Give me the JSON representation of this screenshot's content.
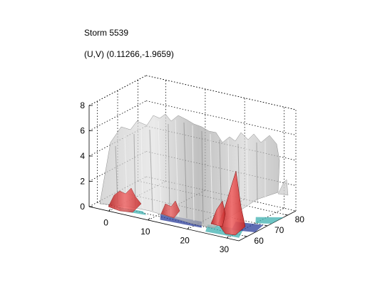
{
  "chart_data": {
    "type": "surface3d",
    "title": "Storm 5539",
    "subtitle": "(U,V) (0.11266,-1.9659)",
    "xlabel": "",
    "ylabel": "",
    "zlabel": "",
    "x_ticks": [
      "0",
      "10",
      "20",
      "30"
    ],
    "y_ticks": [
      "60",
      "70",
      "80"
    ],
    "z_ticks": [
      "0",
      "2",
      "4",
      "6",
      "8"
    ],
    "x_range": [
      -5,
      33
    ],
    "y_range": [
      56,
      84
    ],
    "z_range": [
      0,
      8
    ],
    "grid": true,
    "surfaces": [
      {
        "color": "#b8b8b8",
        "role": "gray isosurface"
      },
      {
        "color": "#e83a3a",
        "role": "red isosurface"
      },
      {
        "color": "#3fb0b0",
        "role": "cyan ground shading"
      },
      {
        "color": "#2a3c9a",
        "role": "blue ground shading"
      }
    ]
  }
}
